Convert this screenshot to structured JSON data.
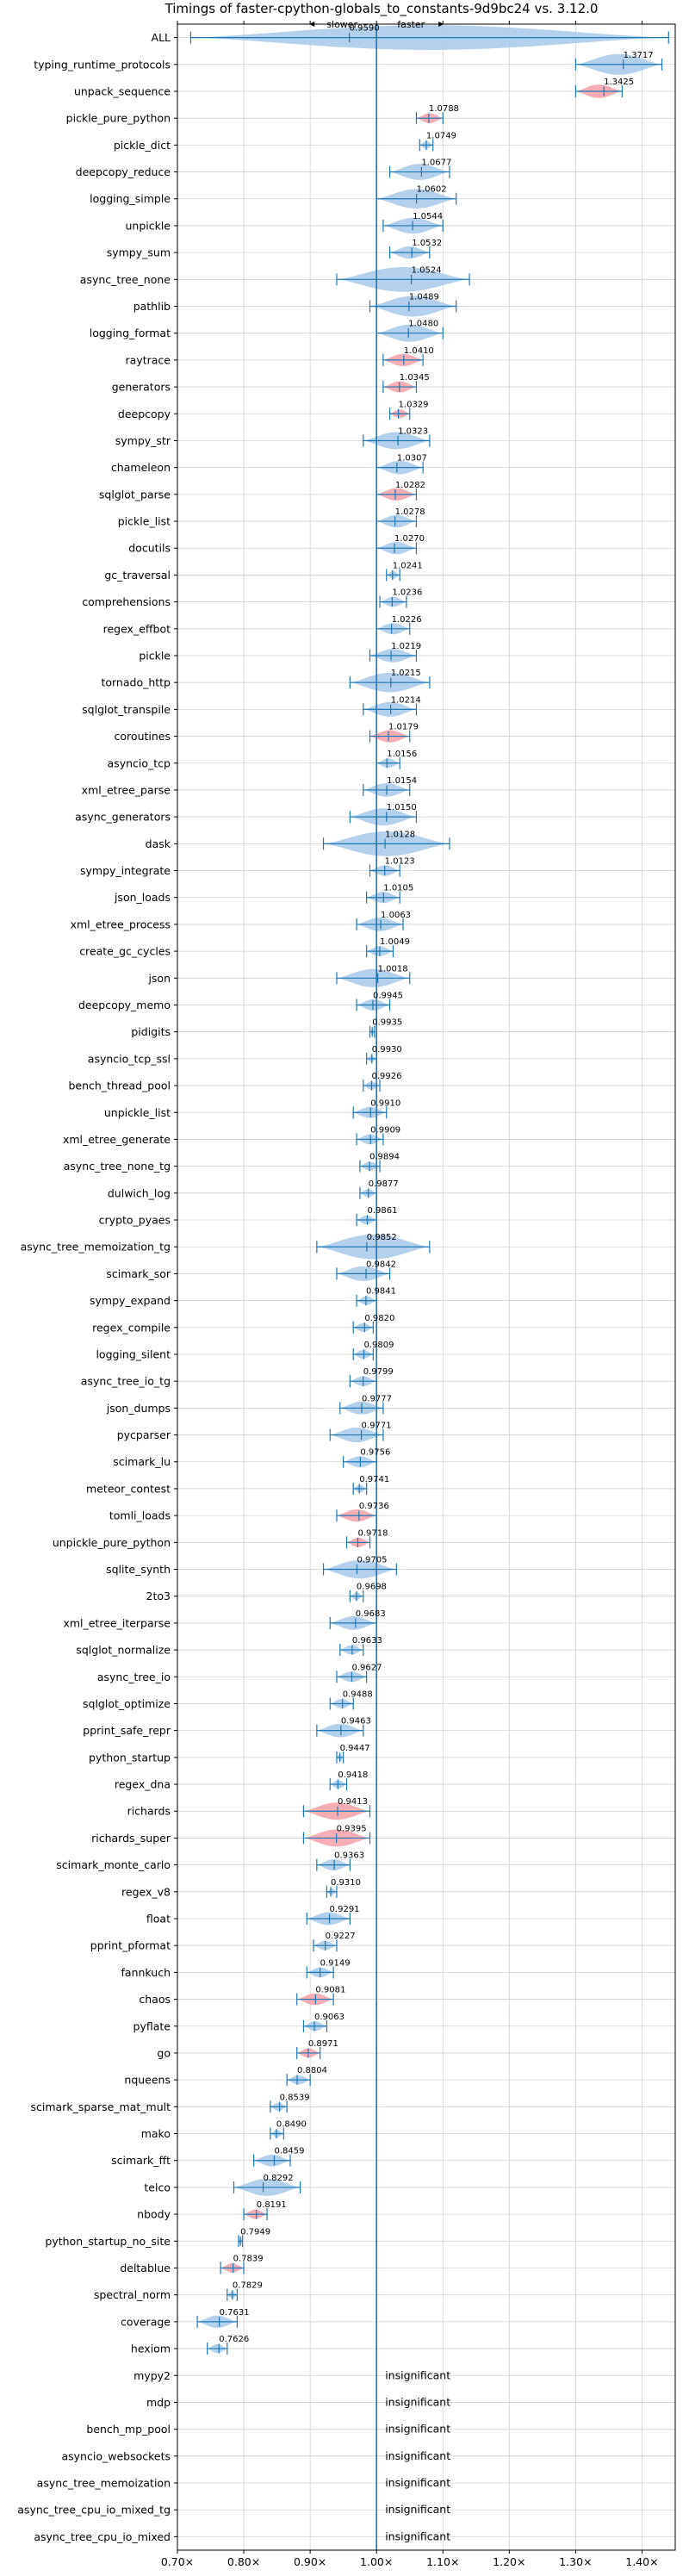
{
  "chart_data": {
    "type": "violin",
    "title": "Timings of faster-cpython-globals_to_constants-9d9bc24 vs. 3.12.0",
    "direction_labels": {
      "slower": "slower",
      "faster": "faster"
    },
    "xlim": [
      0.7,
      1.45
    ],
    "x_ticks": [
      0.7,
      0.8,
      0.9,
      1.0,
      1.1,
      1.2,
      1.3,
      1.4
    ],
    "x_tick_labels": [
      "0.70×",
      "0.80×",
      "0.90×",
      "1.00×",
      "1.10×",
      "1.20×",
      "1.30×",
      "1.40×"
    ],
    "reference_line": 1.0,
    "grid": true,
    "colors": {
      "normal": "#a8c8e8",
      "significant": "#f4a0a8",
      "line": "#1f77b4"
    },
    "insignificant_label": "insignificant",
    "benchmarks": [
      {
        "name": "ALL",
        "value": 0.959,
        "label": "0.9590",
        "lo": 0.72,
        "hi": 1.44,
        "sig": false
      },
      {
        "name": "typing_runtime_protocols",
        "value": 1.3717,
        "label": "1.3717",
        "lo": 1.3,
        "hi": 1.43,
        "sig": false
      },
      {
        "name": "unpack_sequence",
        "value": 1.3425,
        "label": "1.3425",
        "lo": 1.3,
        "hi": 1.37,
        "sig": true
      },
      {
        "name": "pickle_pure_python",
        "value": 1.0788,
        "label": "1.0788",
        "lo": 1.06,
        "hi": 1.1,
        "sig": true
      },
      {
        "name": "pickle_dict",
        "value": 1.0749,
        "label": "1.0749",
        "lo": 1.065,
        "hi": 1.085,
        "sig": false
      },
      {
        "name": "deepcopy_reduce",
        "value": 1.0677,
        "label": "1.0677",
        "lo": 1.02,
        "hi": 1.11,
        "sig": false
      },
      {
        "name": "logging_simple",
        "value": 1.0602,
        "label": "1.0602",
        "lo": 1.0,
        "hi": 1.12,
        "sig": false
      },
      {
        "name": "unpickle",
        "value": 1.0544,
        "label": "1.0544",
        "lo": 1.01,
        "hi": 1.1,
        "sig": false
      },
      {
        "name": "sympy_sum",
        "value": 1.0532,
        "label": "1.0532",
        "lo": 1.02,
        "hi": 1.08,
        "sig": false
      },
      {
        "name": "async_tree_none",
        "value": 1.0524,
        "label": "1.0524",
        "lo": 0.94,
        "hi": 1.14,
        "sig": false
      },
      {
        "name": "pathlib",
        "value": 1.0489,
        "label": "1.0489",
        "lo": 0.99,
        "hi": 1.12,
        "sig": false
      },
      {
        "name": "logging_format",
        "value": 1.048,
        "label": "1.0480",
        "lo": 1.0,
        "hi": 1.1,
        "sig": false
      },
      {
        "name": "raytrace",
        "value": 1.041,
        "label": "1.0410",
        "lo": 1.01,
        "hi": 1.07,
        "sig": true
      },
      {
        "name": "generators",
        "value": 1.0345,
        "label": "1.0345",
        "lo": 1.01,
        "hi": 1.06,
        "sig": true
      },
      {
        "name": "deepcopy",
        "value": 1.0329,
        "label": "1.0329",
        "lo": 1.02,
        "hi": 1.05,
        "sig": true
      },
      {
        "name": "sympy_str",
        "value": 1.0323,
        "label": "1.0323",
        "lo": 0.98,
        "hi": 1.08,
        "sig": false
      },
      {
        "name": "chameleon",
        "value": 1.0307,
        "label": "1.0307",
        "lo": 1.0,
        "hi": 1.07,
        "sig": false
      },
      {
        "name": "sqlglot_parse",
        "value": 1.0282,
        "label": "1.0282",
        "lo": 1.0,
        "hi": 1.06,
        "sig": true
      },
      {
        "name": "pickle_list",
        "value": 1.0278,
        "label": "1.0278",
        "lo": 1.0,
        "hi": 1.06,
        "sig": false
      },
      {
        "name": "docutils",
        "value": 1.027,
        "label": "1.0270",
        "lo": 1.0,
        "hi": 1.06,
        "sig": false
      },
      {
        "name": "gc_traversal",
        "value": 1.0241,
        "label": "1.0241",
        "lo": 1.015,
        "hi": 1.035,
        "sig": false
      },
      {
        "name": "comprehensions",
        "value": 1.0236,
        "label": "1.0236",
        "lo": 1.005,
        "hi": 1.045,
        "sig": false
      },
      {
        "name": "regex_effbot",
        "value": 1.0226,
        "label": "1.0226",
        "lo": 1.0,
        "hi": 1.05,
        "sig": false
      },
      {
        "name": "pickle",
        "value": 1.0219,
        "label": "1.0219",
        "lo": 0.99,
        "hi": 1.06,
        "sig": false
      },
      {
        "name": "tornado_http",
        "value": 1.0215,
        "label": "1.0215",
        "lo": 0.96,
        "hi": 1.08,
        "sig": false
      },
      {
        "name": "sqlglot_transpile",
        "value": 1.0214,
        "label": "1.0214",
        "lo": 0.98,
        "hi": 1.06,
        "sig": false
      },
      {
        "name": "coroutines",
        "value": 1.0179,
        "label": "1.0179",
        "lo": 0.99,
        "hi": 1.05,
        "sig": true
      },
      {
        "name": "asyncio_tcp",
        "value": 1.0156,
        "label": "1.0156",
        "lo": 1.0,
        "hi": 1.035,
        "sig": false
      },
      {
        "name": "xml_etree_parse",
        "value": 1.0154,
        "label": "1.0154",
        "lo": 0.98,
        "hi": 1.05,
        "sig": false
      },
      {
        "name": "async_generators",
        "value": 1.015,
        "label": "1.0150",
        "lo": 0.96,
        "hi": 1.06,
        "sig": false
      },
      {
        "name": "dask",
        "value": 1.0128,
        "label": "1.0128",
        "lo": 0.92,
        "hi": 1.11,
        "sig": false
      },
      {
        "name": "sympy_integrate",
        "value": 1.0123,
        "label": "1.0123",
        "lo": 0.99,
        "hi": 1.035,
        "sig": false
      },
      {
        "name": "json_loads",
        "value": 1.0105,
        "label": "1.0105",
        "lo": 0.985,
        "hi": 1.035,
        "sig": false
      },
      {
        "name": "xml_etree_process",
        "value": 1.0063,
        "label": "1.0063",
        "lo": 0.97,
        "hi": 1.04,
        "sig": false
      },
      {
        "name": "create_gc_cycles",
        "value": 1.0049,
        "label": "1.0049",
        "lo": 0.985,
        "hi": 1.025,
        "sig": false
      },
      {
        "name": "json",
        "value": 1.0018,
        "label": "1.0018",
        "lo": 0.94,
        "hi": 1.05,
        "sig": false
      },
      {
        "name": "deepcopy_memo",
        "value": 0.9945,
        "label": "0.9945",
        "lo": 0.97,
        "hi": 1.02,
        "sig": false
      },
      {
        "name": "pidigits",
        "value": 0.9935,
        "label": "0.9935",
        "lo": 0.99,
        "hi": 0.997,
        "sig": false
      },
      {
        "name": "asyncio_tcp_ssl",
        "value": 0.993,
        "label": "0.9930",
        "lo": 0.985,
        "hi": 1.0,
        "sig": false
      },
      {
        "name": "bench_thread_pool",
        "value": 0.9926,
        "label": "0.9926",
        "lo": 0.98,
        "hi": 1.005,
        "sig": false
      },
      {
        "name": "unpickle_list",
        "value": 0.991,
        "label": "0.9910",
        "lo": 0.965,
        "hi": 1.015,
        "sig": false
      },
      {
        "name": "xml_etree_generate",
        "value": 0.9909,
        "label": "0.9909",
        "lo": 0.97,
        "hi": 1.01,
        "sig": false
      },
      {
        "name": "async_tree_none_tg",
        "value": 0.9894,
        "label": "0.9894",
        "lo": 0.975,
        "hi": 1.005,
        "sig": false
      },
      {
        "name": "dulwich_log",
        "value": 0.9877,
        "label": "0.9877",
        "lo": 0.975,
        "hi": 1.0,
        "sig": false
      },
      {
        "name": "crypto_pyaes",
        "value": 0.9861,
        "label": "0.9861",
        "lo": 0.97,
        "hi": 1.0,
        "sig": false
      },
      {
        "name": "async_tree_memoization_tg",
        "value": 0.9852,
        "label": "0.9852",
        "lo": 0.91,
        "hi": 1.08,
        "sig": false
      },
      {
        "name": "scimark_sor",
        "value": 0.9842,
        "label": "0.9842",
        "lo": 0.94,
        "hi": 1.02,
        "sig": false
      },
      {
        "name": "sympy_expand",
        "value": 0.9841,
        "label": "0.9841",
        "lo": 0.97,
        "hi": 1.0,
        "sig": false
      },
      {
        "name": "regex_compile",
        "value": 0.982,
        "label": "0.9820",
        "lo": 0.965,
        "hi": 0.995,
        "sig": false
      },
      {
        "name": "logging_silent",
        "value": 0.9809,
        "label": "0.9809",
        "lo": 0.965,
        "hi": 0.995,
        "sig": false
      },
      {
        "name": "async_tree_io_tg",
        "value": 0.9799,
        "label": "0.9799",
        "lo": 0.96,
        "hi": 1.0,
        "sig": false
      },
      {
        "name": "json_dumps",
        "value": 0.9777,
        "label": "0.9777",
        "lo": 0.945,
        "hi": 1.01,
        "sig": false
      },
      {
        "name": "pycparser",
        "value": 0.9771,
        "label": "0.9771",
        "lo": 0.93,
        "hi": 1.01,
        "sig": false
      },
      {
        "name": "scimark_lu",
        "value": 0.9756,
        "label": "0.9756",
        "lo": 0.95,
        "hi": 1.0,
        "sig": false
      },
      {
        "name": "meteor_contest",
        "value": 0.9741,
        "label": "0.9741",
        "lo": 0.965,
        "hi": 0.985,
        "sig": false
      },
      {
        "name": "tomli_loads",
        "value": 0.9736,
        "label": "0.9736",
        "lo": 0.94,
        "hi": 1.0,
        "sig": true
      },
      {
        "name": "unpickle_pure_python",
        "value": 0.9718,
        "label": "0.9718",
        "lo": 0.955,
        "hi": 0.99,
        "sig": true
      },
      {
        "name": "sqlite_synth",
        "value": 0.9705,
        "label": "0.9705",
        "lo": 0.92,
        "hi": 1.03,
        "sig": false
      },
      {
        "name": "2to3",
        "value": 0.9698,
        "label": "0.9698",
        "lo": 0.96,
        "hi": 0.98,
        "sig": false
      },
      {
        "name": "xml_etree_iterparse",
        "value": 0.9683,
        "label": "0.9683",
        "lo": 0.93,
        "hi": 1.0,
        "sig": false
      },
      {
        "name": "sqlglot_normalize",
        "value": 0.9633,
        "label": "0.9633",
        "lo": 0.945,
        "hi": 0.98,
        "sig": false
      },
      {
        "name": "async_tree_io",
        "value": 0.9627,
        "label": "0.9627",
        "lo": 0.94,
        "hi": 0.985,
        "sig": false
      },
      {
        "name": "sqlglot_optimize",
        "value": 0.9488,
        "label": "0.9488",
        "lo": 0.93,
        "hi": 0.965,
        "sig": false
      },
      {
        "name": "pprint_safe_repr",
        "value": 0.9463,
        "label": "0.9463",
        "lo": 0.91,
        "hi": 0.98,
        "sig": false
      },
      {
        "name": "python_startup",
        "value": 0.9447,
        "label": "0.9447",
        "lo": 0.94,
        "hi": 0.95,
        "sig": false
      },
      {
        "name": "regex_dna",
        "value": 0.9418,
        "label": "0.9418",
        "lo": 0.93,
        "hi": 0.955,
        "sig": false
      },
      {
        "name": "richards",
        "value": 0.9413,
        "label": "0.9413",
        "lo": 0.89,
        "hi": 0.99,
        "sig": true
      },
      {
        "name": "richards_super",
        "value": 0.9395,
        "label": "0.9395",
        "lo": 0.89,
        "hi": 0.99,
        "sig": true
      },
      {
        "name": "scimark_monte_carlo",
        "value": 0.9363,
        "label": "0.9363",
        "lo": 0.91,
        "hi": 0.96,
        "sig": false
      },
      {
        "name": "regex_v8",
        "value": 0.931,
        "label": "0.9310",
        "lo": 0.925,
        "hi": 0.94,
        "sig": false
      },
      {
        "name": "float",
        "value": 0.9291,
        "label": "0.9291",
        "lo": 0.895,
        "hi": 0.96,
        "sig": false
      },
      {
        "name": "pprint_pformat",
        "value": 0.9227,
        "label": "0.9227",
        "lo": 0.905,
        "hi": 0.94,
        "sig": false
      },
      {
        "name": "fannkuch",
        "value": 0.9149,
        "label": "0.9149",
        "lo": 0.895,
        "hi": 0.935,
        "sig": false
      },
      {
        "name": "chaos",
        "value": 0.9081,
        "label": "0.9081",
        "lo": 0.88,
        "hi": 0.935,
        "sig": true
      },
      {
        "name": "pyflate",
        "value": 0.9063,
        "label": "0.9063",
        "lo": 0.89,
        "hi": 0.925,
        "sig": false
      },
      {
        "name": "go",
        "value": 0.8971,
        "label": "0.8971",
        "lo": 0.88,
        "hi": 0.915,
        "sig": true
      },
      {
        "name": "nqueens",
        "value": 0.8804,
        "label": "0.8804",
        "lo": 0.865,
        "hi": 0.9,
        "sig": false
      },
      {
        "name": "scimark_sparse_mat_mult",
        "value": 0.8539,
        "label": "0.8539",
        "lo": 0.84,
        "hi": 0.865,
        "sig": false
      },
      {
        "name": "mako",
        "value": 0.849,
        "label": "0.8490",
        "lo": 0.84,
        "hi": 0.86,
        "sig": false
      },
      {
        "name": "scimark_fft",
        "value": 0.8459,
        "label": "0.8459",
        "lo": 0.815,
        "hi": 0.87,
        "sig": false
      },
      {
        "name": "telco",
        "value": 0.8292,
        "label": "0.8292",
        "lo": 0.785,
        "hi": 0.885,
        "sig": false
      },
      {
        "name": "nbody",
        "value": 0.8191,
        "label": "0.8191",
        "lo": 0.8,
        "hi": 0.835,
        "sig": true
      },
      {
        "name": "python_startup_no_site",
        "value": 0.7949,
        "label": "0.7949",
        "lo": 0.792,
        "hi": 0.798,
        "sig": false
      },
      {
        "name": "deltablue",
        "value": 0.7839,
        "label": "0.7839",
        "lo": 0.765,
        "hi": 0.8,
        "sig": true
      },
      {
        "name": "spectral_norm",
        "value": 0.7829,
        "label": "0.7829",
        "lo": 0.775,
        "hi": 0.79,
        "sig": false
      },
      {
        "name": "coverage",
        "value": 0.7631,
        "label": "0.7631",
        "lo": 0.73,
        "hi": 0.79,
        "sig": false
      },
      {
        "name": "hexiom",
        "value": 0.7626,
        "label": "0.7626",
        "lo": 0.745,
        "hi": 0.775,
        "sig": false
      },
      {
        "name": "mypy2",
        "value": null,
        "label": "",
        "lo": null,
        "hi": null,
        "sig": false
      },
      {
        "name": "mdp",
        "value": null,
        "label": "",
        "lo": null,
        "hi": null,
        "sig": false
      },
      {
        "name": "bench_mp_pool",
        "value": null,
        "label": "",
        "lo": null,
        "hi": null,
        "sig": false
      },
      {
        "name": "asyncio_websockets",
        "value": null,
        "label": "",
        "lo": null,
        "hi": null,
        "sig": false
      },
      {
        "name": "async_tree_memoization",
        "value": null,
        "label": "",
        "lo": null,
        "hi": null,
        "sig": false
      },
      {
        "name": "async_tree_cpu_io_mixed_tg",
        "value": null,
        "label": "",
        "lo": null,
        "hi": null,
        "sig": false
      },
      {
        "name": "async_tree_cpu_io_mixed",
        "value": null,
        "label": "",
        "lo": null,
        "hi": null,
        "sig": false
      }
    ]
  }
}
